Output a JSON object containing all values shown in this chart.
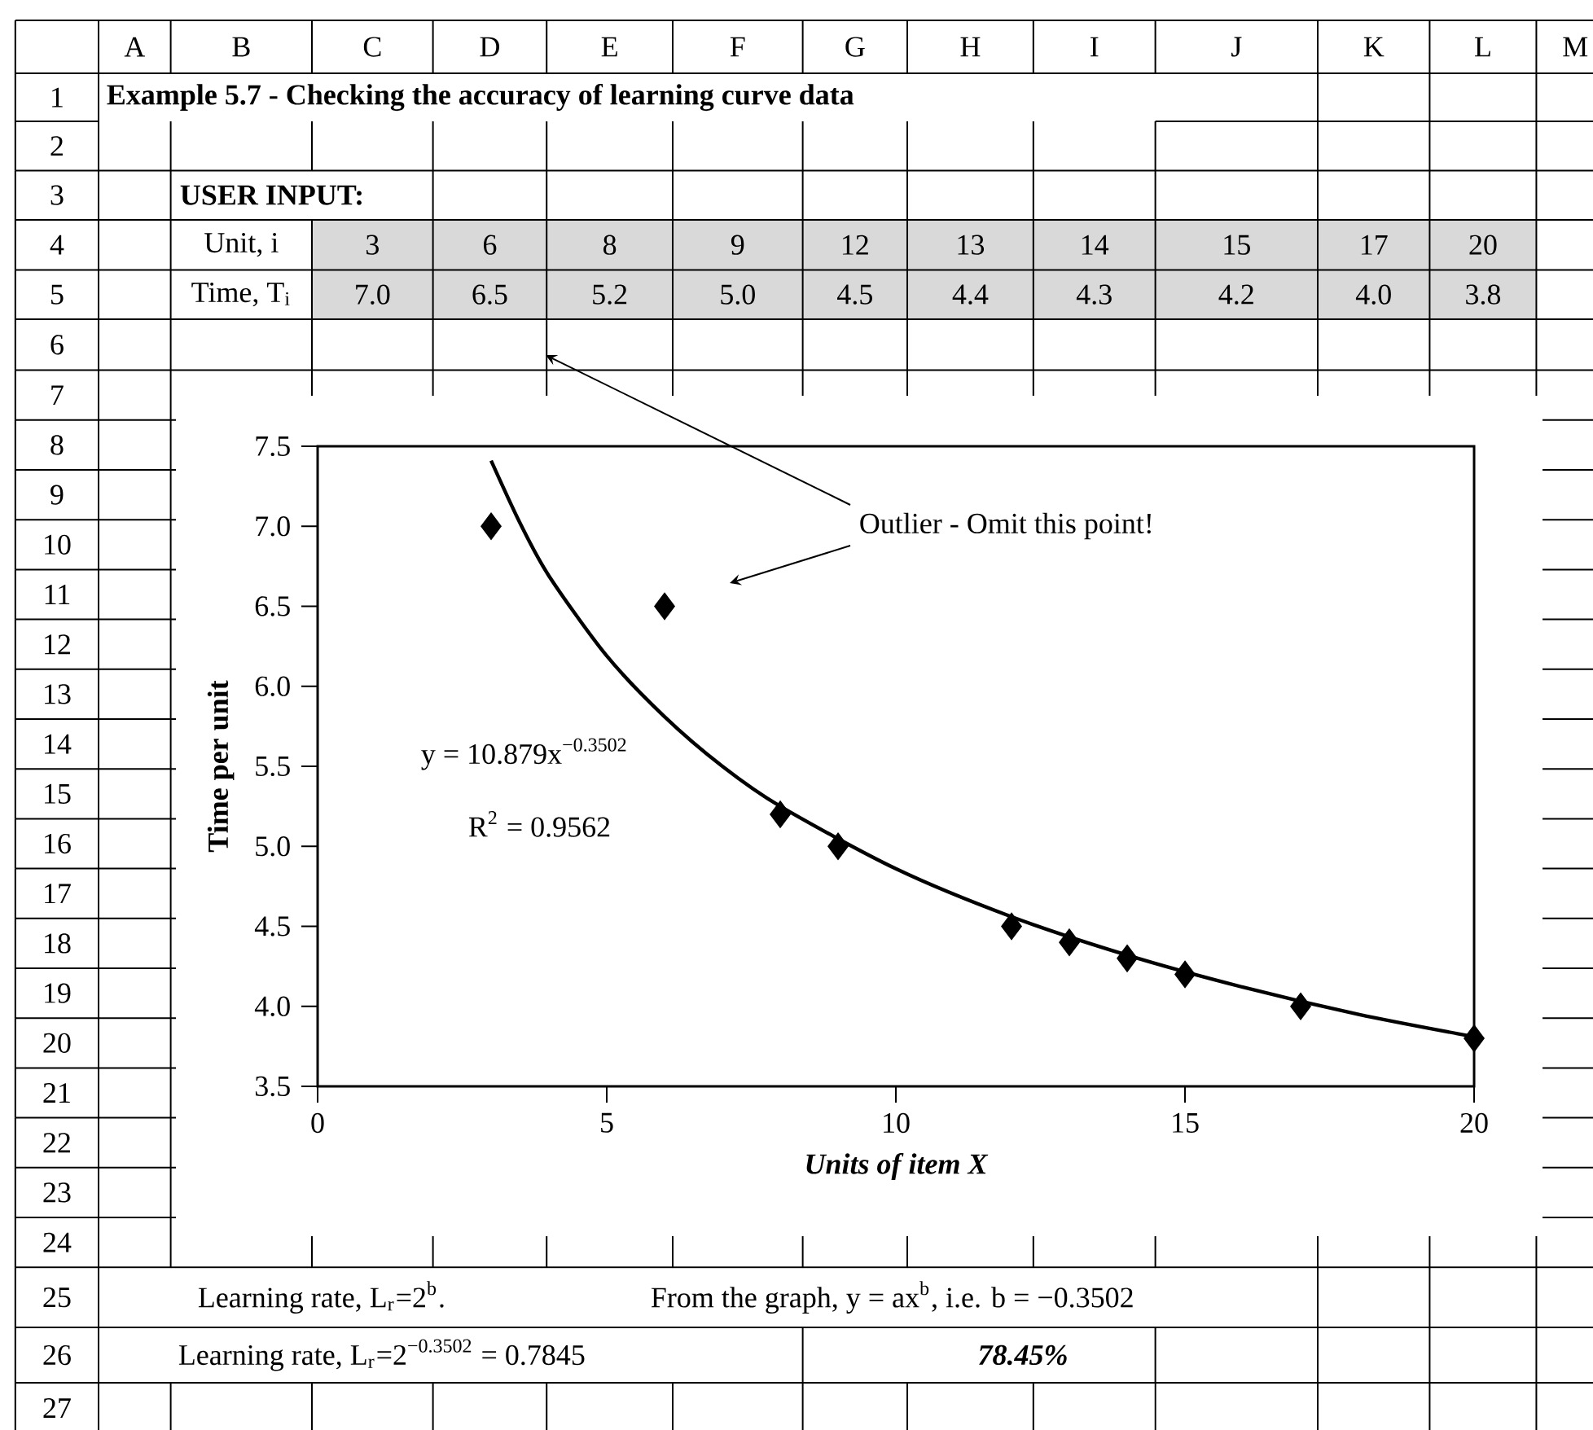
{
  "chart_data": {
    "type": "scatter",
    "title": "Example 5.7 - Checking the accuracy of learning curve data",
    "xlabel": "Units of item X",
    "ylabel": "Time per unit",
    "xlim": [
      0,
      20
    ],
    "ylim": [
      3.5,
      7.5
    ],
    "xticks": [
      0,
      5,
      10,
      15,
      20
    ],
    "yticks": [
      3.5,
      {
        "value": 4,
        "label": "4.0"
      },
      4.5,
      {
        "value": 5,
        "label": "5.0"
      },
      5.5,
      {
        "value": 6,
        "label": "6.0"
      },
      6.5,
      {
        "value": 7,
        "label": "7.0"
      },
      7.5
    ],
    "marker": "diamond",
    "series": [
      {
        "color": "#000000",
        "x": [
          3,
          6,
          8,
          9,
          12,
          13,
          14,
          15,
          17,
          20
        ],
        "values": [
          7.0,
          6.5,
          5.2,
          5.0,
          4.5,
          4.4,
          4.3,
          4.2,
          4.0,
          3.8
        ]
      },
      {
        "type": "line",
        "marker": "none",
        "color": "#000000",
        "x": [
          3,
          3.5,
          4,
          5,
          6,
          7,
          8,
          10,
          12,
          14,
          16,
          18,
          20
        ],
        "values": [
          7.41,
          7.02,
          6.69,
          6.19,
          5.81,
          5.5,
          5.25,
          4.86,
          4.56,
          4.32,
          4.12,
          3.95,
          3.81
        ]
      }
    ],
    "annotations": [
      "USER INPUT:",
      "Unit, i",
      "Time, T$_{i}$",
      "Outlier - Omit this point!",
      "y = 10.879x$^{−0.3502}$",
      "R$^{2}$ = 0.9562",
      "Learning rate, L$_{r}$=2$^{b}$.",
      "From the graph, y = ax$^{b}$, i.e. b = −0.3502",
      "Learning rate, L$_{r}$=2$^{−0.3502}$ = 0.7845",
      "78.45%",
      "A",
      "B",
      "C",
      "D",
      "E",
      "F",
      "G",
      "H",
      "I",
      "J",
      "K",
      "L",
      "M",
      "1",
      "2",
      "3",
      "4",
      "5",
      "6",
      "7",
      "8",
      "9",
      "10",
      "11",
      "12",
      "13",
      "14",
      "15",
      "16",
      "17",
      "18",
      "19",
      "20",
      "21",
      "22",
      "23",
      "24",
      "25",
      "26",
      "27",
      "3",
      "6",
      "8",
      "9",
      "12",
      "13",
      "14",
      "15",
      "17",
      "20",
      "7.0",
      "6.5",
      "5.2",
      "5.0",
      "4.5",
      "4.4",
      "4.3",
      "4.2",
      "4.0",
      "3.8"
    ]
  }
}
